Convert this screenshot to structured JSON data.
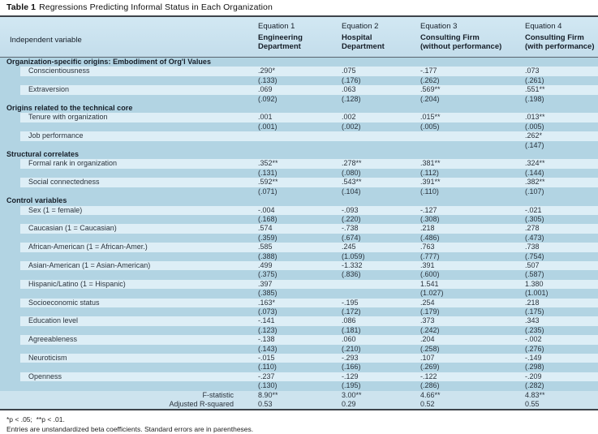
{
  "title": {
    "label": "Table 1",
    "text": "Regressions Predicting Informal Status in Each Organization"
  },
  "table": {
    "corner_header": "Independent variable",
    "columns": [
      {
        "equation": "Equation 1",
        "name": "Engineering\nDepartment"
      },
      {
        "equation": "Equation 2",
        "name": "Hospital\nDepartment"
      },
      {
        "equation": "Equation 3",
        "name": "Consulting Firm\n(without performance)"
      },
      {
        "equation": "Equation 4",
        "name": "Consulting Firm\n(with performance)"
      }
    ],
    "sections": [
      {
        "header": "Organization-specific origins: Embodiment of Org'l Values",
        "rows": [
          {
            "label": "Conscientiousness",
            "coefs": [
              ".290*",
              ".075",
              "-.177",
              ".073"
            ],
            "ses": [
              "(.133)",
              "(.176)",
              "(.262)",
              "(.261)"
            ]
          },
          {
            "label": "Extraversion",
            "coefs": [
              ".069",
              ".063",
              ".569**",
              ".551**"
            ],
            "ses": [
              "(.092)",
              "(.128)",
              "(.204)",
              "(.198)"
            ]
          }
        ]
      },
      {
        "header": "Origins related to the technical core",
        "rows": [
          {
            "label": "Tenure with organization",
            "coefs": [
              ".001",
              ".002",
              ".015**",
              ".013**"
            ],
            "ses": [
              "(.001)",
              "(.002)",
              "(.005)",
              "(.005)"
            ]
          },
          {
            "label": "Job performance",
            "coefs": [
              "",
              "",
              "",
              ".262*"
            ],
            "ses": [
              "",
              "",
              "",
              "(.147)"
            ]
          }
        ]
      },
      {
        "header": "Structural correlates",
        "rows": [
          {
            "label": "Formal rank in organization",
            "coefs": [
              ".352**",
              ".278**",
              ".381**",
              ".324**"
            ],
            "ses": [
              "(.131)",
              "(.080)",
              "(.112)",
              "(.144)"
            ]
          },
          {
            "label": "Social connectedness",
            "coefs": [
              ".592**",
              ".543**",
              ".391**",
              ".382**"
            ],
            "ses": [
              "(.071)",
              "(.104)",
              "(.110)",
              "(.107)"
            ]
          }
        ]
      },
      {
        "header": "Control variables",
        "rows": [
          {
            "label": "Sex (1 = female)",
            "coefs": [
              "-.004",
              "-.093",
              "-.127",
              "-.021"
            ],
            "ses": [
              "(.168)",
              "(.220)",
              "(.308)",
              "(.305)"
            ]
          },
          {
            "label": "Caucasian (1 = Caucasian)",
            "coefs": [
              ".574",
              "-.738",
              ".218",
              ".278"
            ],
            "ses": [
              "(.359)",
              "(.674)",
              "(.486)",
              "(.473)"
            ]
          },
          {
            "label": "African-American (1 = African-Amer.)",
            "coefs": [
              ".585",
              ".245",
              ".763",
              ".738"
            ],
            "ses": [
              "(.388)",
              "(1.059)",
              "(.777)",
              "(.754)"
            ]
          },
          {
            "label": "Asian-American (1 = Asian-American)",
            "coefs": [
              ".499",
              "-1.332",
              ".391",
              ".507"
            ],
            "ses": [
              "(.375)",
              "(.836)",
              "(.600)",
              "(.587)"
            ]
          },
          {
            "label": "Hispanic/Latino (1 = Hispanic)",
            "coefs": [
              ".397",
              "",
              "1.541",
              "1.380"
            ],
            "ses": [
              "(.385)",
              "",
              "(1.027)",
              "(1.001)"
            ]
          },
          {
            "label": "Socioeconomic status",
            "coefs": [
              ".163*",
              "-.195",
              ".254",
              ".218"
            ],
            "ses": [
              "(.073)",
              "(.172)",
              "(.179)",
              "(.175)"
            ]
          },
          {
            "label": "Education level",
            "coefs": [
              "-.141",
              ".086",
              ".373",
              ".343"
            ],
            "ses": [
              "(.123)",
              "(.181)",
              "(.242)",
              "(.235)"
            ]
          },
          {
            "label": "Agreeableness",
            "coefs": [
              "-.138",
              ".060",
              ".204",
              "-.002"
            ],
            "ses": [
              "(.143)",
              "(.210)",
              "(.258)",
              "(.276)"
            ]
          },
          {
            "label": "Neuroticism",
            "coefs": [
              "-.015",
              "-.293",
              ".107",
              "-.149"
            ],
            "ses": [
              "(.110)",
              "(.166)",
              "(.269)",
              "(.298)"
            ]
          },
          {
            "label": "Openness",
            "coefs": [
              "-.237",
              "-.129",
              "-.122",
              "-.209"
            ],
            "ses": [
              "(.130)",
              "(.195)",
              "(.286)",
              "(.282)"
            ]
          }
        ]
      }
    ],
    "stats": [
      {
        "label": "F-statistic",
        "values": [
          "8.90**",
          "3.00**",
          "4.66**",
          "4.83**"
        ]
      },
      {
        "label": "Adjusted R-squared",
        "values": [
          "0.53",
          "0.29",
          "0.52",
          "0.55"
        ]
      }
    ]
  },
  "footnotes": [
    "*p < .05;  **p < .01.",
    "Entries are unstandardized beta coefficients. Standard errors are in parentheses."
  ],
  "colors": {
    "band_medium": "#b2d4e3",
    "band_light": "#ddeef6",
    "header_blue": "#c9e2ef",
    "stats_blue": "#cde3ee",
    "rule": "#3e444b"
  }
}
